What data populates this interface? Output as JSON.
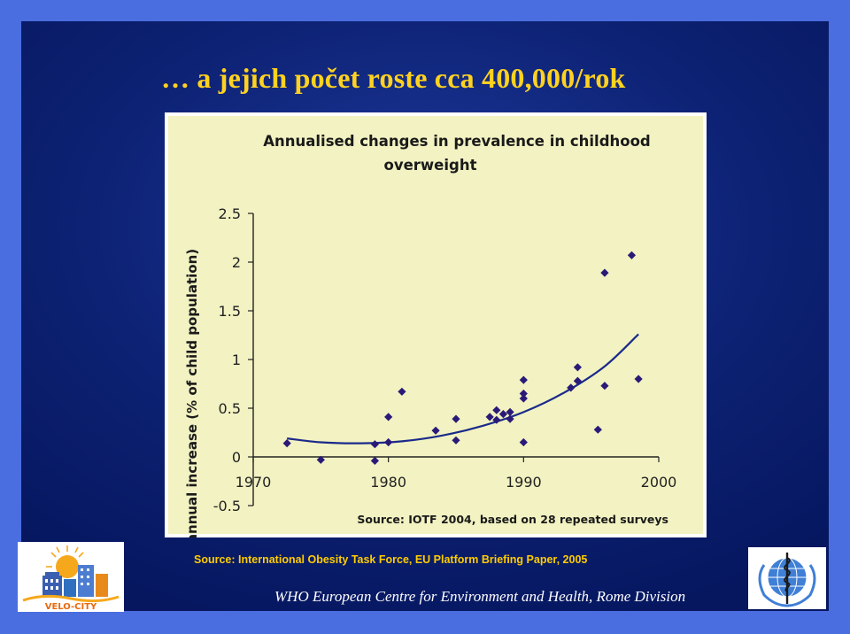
{
  "slide": {
    "title": "… a jejich počet roste cca 400,000/rok",
    "source": "Source: International Obesity Task Force, EU Platform Briefing Paper, 2005",
    "footer": "WHO European Centre for Environment and Health, Rome Division",
    "velo_logo_text": "VELO-CITY",
    "colors": {
      "background": "#0d2274",
      "title": "#ffd21f",
      "source": "#ffcc00",
      "plot_bg": "#f2f2c2",
      "markers": "#2a1a78",
      "trend": "#1a2a8a"
    }
  },
  "chart_data": {
    "type": "scatter",
    "title_lines": [
      "Annualised changes in prevalence in childhood",
      "overweight"
    ],
    "xlabel": "",
    "ylabel": "annual increase (% of child population)",
    "xlim": [
      1970,
      2000
    ],
    "ylim": [
      -0.5,
      2.5
    ],
    "xticks": [
      "1970",
      "1980",
      "1990",
      "2000"
    ],
    "yticks": [
      "2.5",
      "2",
      "1.5",
      "1",
      "0.5",
      "0",
      "-0.5"
    ],
    "note": "Source: IOTF 2004, based on 28 repeated surveys",
    "grid": false,
    "points": [
      [
        1972.5,
        0.14
      ],
      [
        1975,
        -0.03
      ],
      [
        1979,
        -0.04
      ],
      [
        1979,
        0.13
      ],
      [
        1980,
        0.15
      ],
      [
        1980,
        0.41
      ],
      [
        1981,
        0.67
      ],
      [
        1983.5,
        0.27
      ],
      [
        1985,
        0.17
      ],
      [
        1985,
        0.39
      ],
      [
        1987.5,
        0.41
      ],
      [
        1988,
        0.48
      ],
      [
        1988,
        0.38
      ],
      [
        1988.5,
        0.44
      ],
      [
        1989,
        0.39
      ],
      [
        1989,
        0.46
      ],
      [
        1990,
        0.15
      ],
      [
        1990,
        0.6
      ],
      [
        1990,
        0.65
      ],
      [
        1990,
        0.79
      ],
      [
        1993.5,
        0.71
      ],
      [
        1994,
        0.78
      ],
      [
        1994,
        0.92
      ],
      [
        1995.5,
        0.28
      ],
      [
        1996,
        0.73
      ],
      [
        1996,
        1.89
      ],
      [
        1998,
        2.07
      ],
      [
        1998.5,
        0.8
      ]
    ],
    "trend": [
      [
        1972.5,
        0.19
      ],
      [
        1975,
        0.15
      ],
      [
        1978,
        0.14
      ],
      [
        1981,
        0.16
      ],
      [
        1984,
        0.22
      ],
      [
        1987,
        0.32
      ],
      [
        1990,
        0.46
      ],
      [
        1993,
        0.66
      ],
      [
        1996,
        0.93
      ],
      [
        1998.5,
        1.26
      ]
    ]
  }
}
